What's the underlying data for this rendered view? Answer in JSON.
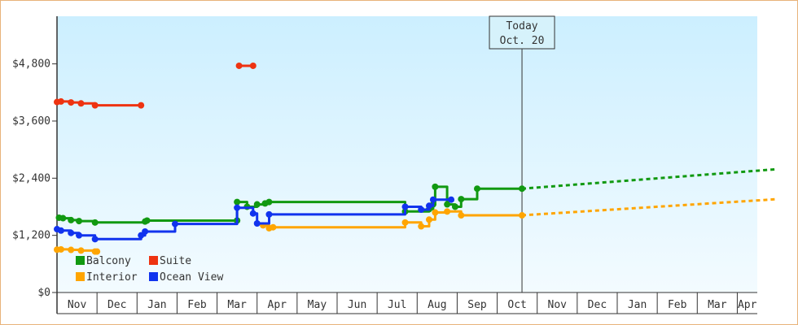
{
  "chart_data": {
    "type": "line",
    "ylim": [
      0,
      5800
    ],
    "y_ticks": [
      {
        "value": 0,
        "label": "$0"
      },
      {
        "value": 1200,
        "label": "$1,200"
      },
      {
        "value": 2400,
        "label": "$2,400"
      },
      {
        "value": 3600,
        "label": "$3,600"
      },
      {
        "value": 4800,
        "label": "$4,800"
      }
    ],
    "x_range": [
      0,
      18
    ],
    "x_unit": "month",
    "categories": [
      "Nov",
      "Dec",
      "Jan",
      "Feb",
      "Mar",
      "Apr",
      "May",
      "Jun",
      "Jul",
      "Aug",
      "Sep",
      "Oct",
      "Nov",
      "Dec",
      "Jan",
      "Feb",
      "Mar",
      "Apr"
    ],
    "today": {
      "x": 11.62,
      "line1": "Today",
      "line2": "Oct. 20"
    },
    "legend": {
      "placement": "bottom-left"
    },
    "series": [
      {
        "name": "Balcony",
        "color": "#119911",
        "segments": [
          [
            [
              0.05,
              1570
            ],
            [
              0.15,
              1570
            ],
            [
              0.15,
              1560
            ],
            [
              0.35,
              1560
            ],
            [
              0.35,
              1520
            ],
            [
              0.55,
              1520
            ],
            [
              0.55,
              1500
            ],
            [
              0.95,
              1500
            ],
            [
              0.95,
              1470
            ],
            [
              2.2,
              1470
            ],
            [
              2.2,
              1490
            ],
            [
              2.25,
              1490
            ],
            [
              2.25,
              1510
            ],
            [
              4.5,
              1510
            ]
          ],
          [
            [
              4.5,
              1510
            ],
            [
              4.5,
              1900
            ],
            [
              4.75,
              1900
            ],
            [
              4.75,
              1800
            ],
            [
              5.0,
              1800
            ],
            [
              5.0,
              1850
            ],
            [
              5.2,
              1850
            ],
            [
              5.2,
              1870
            ],
            [
              5.3,
              1870
            ],
            [
              5.3,
              1900
            ],
            [
              8.7,
              1900
            ],
            [
              8.7,
              1700
            ],
            [
              9.3,
              1700
            ],
            [
              9.3,
              1750
            ],
            [
              9.4,
              1750
            ],
            [
              9.4,
              1850
            ],
            [
              9.45,
              1850
            ],
            [
              9.45,
              2220
            ],
            [
              9.75,
              2220
            ],
            [
              9.75,
              1850
            ],
            [
              9.95,
              1850
            ],
            [
              9.95,
              1800
            ],
            [
              10.1,
              1800
            ],
            [
              10.1,
              1960
            ],
            [
              10.5,
              1960
            ],
            [
              10.5,
              2180
            ],
            [
              11.62,
              2180
            ]
          ]
        ],
        "projection": [
          [
            11.62,
            2180
          ],
          [
            18.0,
            2590
          ]
        ]
      },
      {
        "name": "Suite",
        "color": "#ee3311",
        "segments": [
          [
            [
              0.0,
              4000
            ],
            [
              0.1,
              4000
            ],
            [
              0.1,
              4010
            ],
            [
              0.35,
              4010
            ],
            [
              0.35,
              3990
            ],
            [
              0.6,
              3990
            ],
            [
              0.6,
              3970
            ],
            [
              0.95,
              3970
            ],
            [
              0.95,
              3930
            ],
            [
              2.1,
              3930
            ]
          ],
          [
            [
              4.55,
              4760
            ],
            [
              4.9,
              4760
            ]
          ]
        ],
        "projection": []
      },
      {
        "name": "Interior",
        "color": "#ffa500",
        "segments": [
          [
            [
              0.0,
              900
            ],
            [
              0.1,
              900
            ],
            [
              0.1,
              905
            ],
            [
              0.35,
              905
            ],
            [
              0.35,
              895
            ],
            [
              0.6,
              895
            ],
            [
              0.6,
              880
            ],
            [
              0.95,
              880
            ],
            [
              0.95,
              860
            ],
            [
              1.0,
              860
            ]
          ],
          [
            [
              5.15,
              1410
            ],
            [
              5.3,
              1410
            ],
            [
              5.3,
              1350
            ],
            [
              5.4,
              1350
            ],
            [
              5.4,
              1370
            ],
            [
              8.7,
              1370
            ],
            [
              8.7,
              1470
            ],
            [
              9.1,
              1470
            ],
            [
              9.1,
              1390
            ],
            [
              9.3,
              1390
            ],
            [
              9.3,
              1530
            ],
            [
              9.45,
              1530
            ],
            [
              9.45,
              1680
            ],
            [
              9.75,
              1680
            ],
            [
              9.75,
              1700
            ],
            [
              10.1,
              1700
            ],
            [
              10.1,
              1620
            ],
            [
              11.62,
              1620
            ]
          ]
        ],
        "projection": [
          [
            11.62,
            1620
          ],
          [
            18.0,
            1960
          ]
        ]
      },
      {
        "name": "Ocean View",
        "color": "#1133ee",
        "segments": [
          [
            [
              0.0,
              1330
            ],
            [
              0.1,
              1330
            ],
            [
              0.1,
              1300
            ],
            [
              0.35,
              1300
            ],
            [
              0.35,
              1250
            ],
            [
              0.55,
              1250
            ],
            [
              0.55,
              1200
            ],
            [
              0.95,
              1200
            ],
            [
              0.95,
              1120
            ],
            [
              2.1,
              1120
            ],
            [
              2.1,
              1200
            ],
            [
              2.2,
              1200
            ],
            [
              2.2,
              1280
            ],
            [
              2.95,
              1280
            ],
            [
              2.95,
              1440
            ],
            [
              4.5,
              1440
            ],
            [
              4.5,
              1780
            ],
            [
              4.9,
              1780
            ],
            [
              4.9,
              1660
            ],
            [
              5.0,
              1660
            ],
            [
              5.0,
              1450
            ],
            [
              5.3,
              1450
            ],
            [
              5.3,
              1640
            ],
            [
              8.7,
              1640
            ],
            [
              8.7,
              1800
            ],
            [
              9.1,
              1800
            ],
            [
              9.1,
              1740
            ],
            [
              9.3,
              1740
            ],
            [
              9.3,
              1820
            ],
            [
              9.4,
              1820
            ],
            [
              9.4,
              1950
            ],
            [
              9.85,
              1950
            ]
          ]
        ],
        "projection": []
      }
    ]
  }
}
